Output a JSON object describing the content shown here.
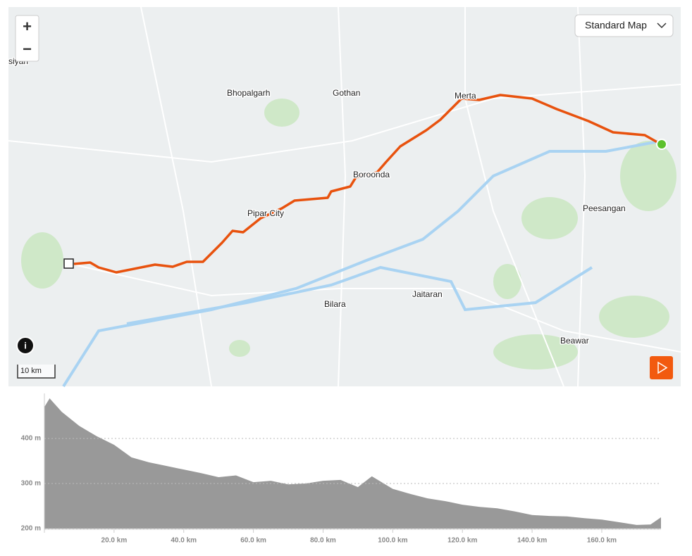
{
  "map": {
    "places": [
      "siyan",
      "Bhopalgarh",
      "Gothan",
      "Merta",
      "Boroonda",
      "Pipar City",
      "Peesangan",
      "Jaitaran",
      "Bilara",
      "Beawar"
    ],
    "map_style": "Standard Map",
    "scale": "10 km",
    "zoom_in": "+",
    "zoom_out": "−",
    "info": "i"
  },
  "chart_data": {
    "type": "area",
    "color": "#999999",
    "x": [
      0,
      1.5,
      5,
      10,
      15,
      20,
      25,
      30,
      35,
      40,
      45,
      50,
      55,
      60,
      65,
      70,
      75,
      80,
      85,
      90,
      94,
      100,
      105,
      110,
      115,
      120,
      125,
      130,
      135,
      140,
      145,
      150,
      155,
      160,
      165,
      170,
      174,
      177
    ],
    "values": [
      470,
      489,
      459,
      428,
      405,
      386,
      358,
      347,
      339,
      331,
      323,
      314,
      318,
      303,
      306,
      298,
      300,
      306,
      308,
      292,
      316,
      288,
      277,
      267,
      261,
      253,
      248,
      245,
      238,
      230,
      228,
      227,
      223,
      220,
      214,
      208,
      209,
      225
    ],
    "xlim": [
      0,
      177
    ],
    "ylim": [
      200,
      500
    ],
    "xticks": [
      {
        "value": 20,
        "label": "20.0 km"
      },
      {
        "value": 40,
        "label": "40.0 km"
      },
      {
        "value": 60,
        "label": "60.0 km"
      },
      {
        "value": 80,
        "label": "80.0 km"
      },
      {
        "value": 100,
        "label": "100.0 km"
      },
      {
        "value": 120,
        "label": "120.0 km"
      },
      {
        "value": 140,
        "label": "140.0 km"
      },
      {
        "value": 160,
        "label": "160.0 km"
      }
    ],
    "yticks": [
      {
        "value": 200,
        "label": "200 m"
      },
      {
        "value": 300,
        "label": "300 m"
      },
      {
        "value": 400,
        "label": "400 m"
      }
    ],
    "grid": true
  }
}
